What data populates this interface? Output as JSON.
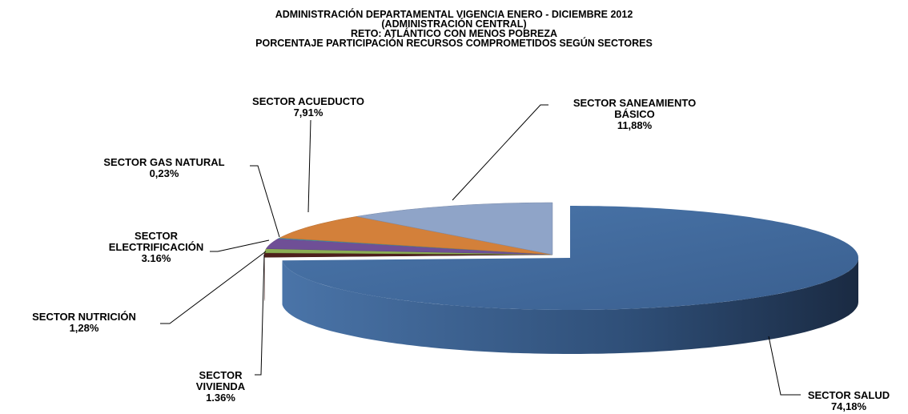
{
  "chart_data": {
    "type": "pie",
    "title": [
      "ADMINISTRACIÓN DEPARTAMENTAL VIGENCIA ENERO - DICIEMBRE 2012",
      "(ADMINISTRACIÓN CENTRAL)",
      "RETO: ATLÁNTICO CON MENOS POBREZA",
      "PORCENTAJE PARTICIPACIÓN RECURSOS COMPROMETIDOS SEGÚN SECTORES"
    ],
    "categories": [
      "SECTOR SALUD",
      "SECTOR VIVIENDA",
      "SECTOR NUTRICIÓN",
      "SECTOR ELECTRIFICACIÓN",
      "SECTOR GAS NATURAL",
      "SECTOR ACUEDUCTO",
      "SECTOR SANEAMIENTO BÁSICO"
    ],
    "values": [
      74.18,
      1.36,
      1.28,
      3.16,
      0.23,
      7.91,
      11.88
    ],
    "value_labels": [
      "74,18%",
      "1.36%",
      "1,28%",
      "3.16%",
      "0,23%",
      "7,91%",
      "11,88%"
    ],
    "colors": [
      "#41699b",
      "#4e1f1b",
      "#8cae54",
      "#6f4f96",
      "#3fa0b8",
      "#d3803a",
      "#8fa4c8"
    ]
  }
}
